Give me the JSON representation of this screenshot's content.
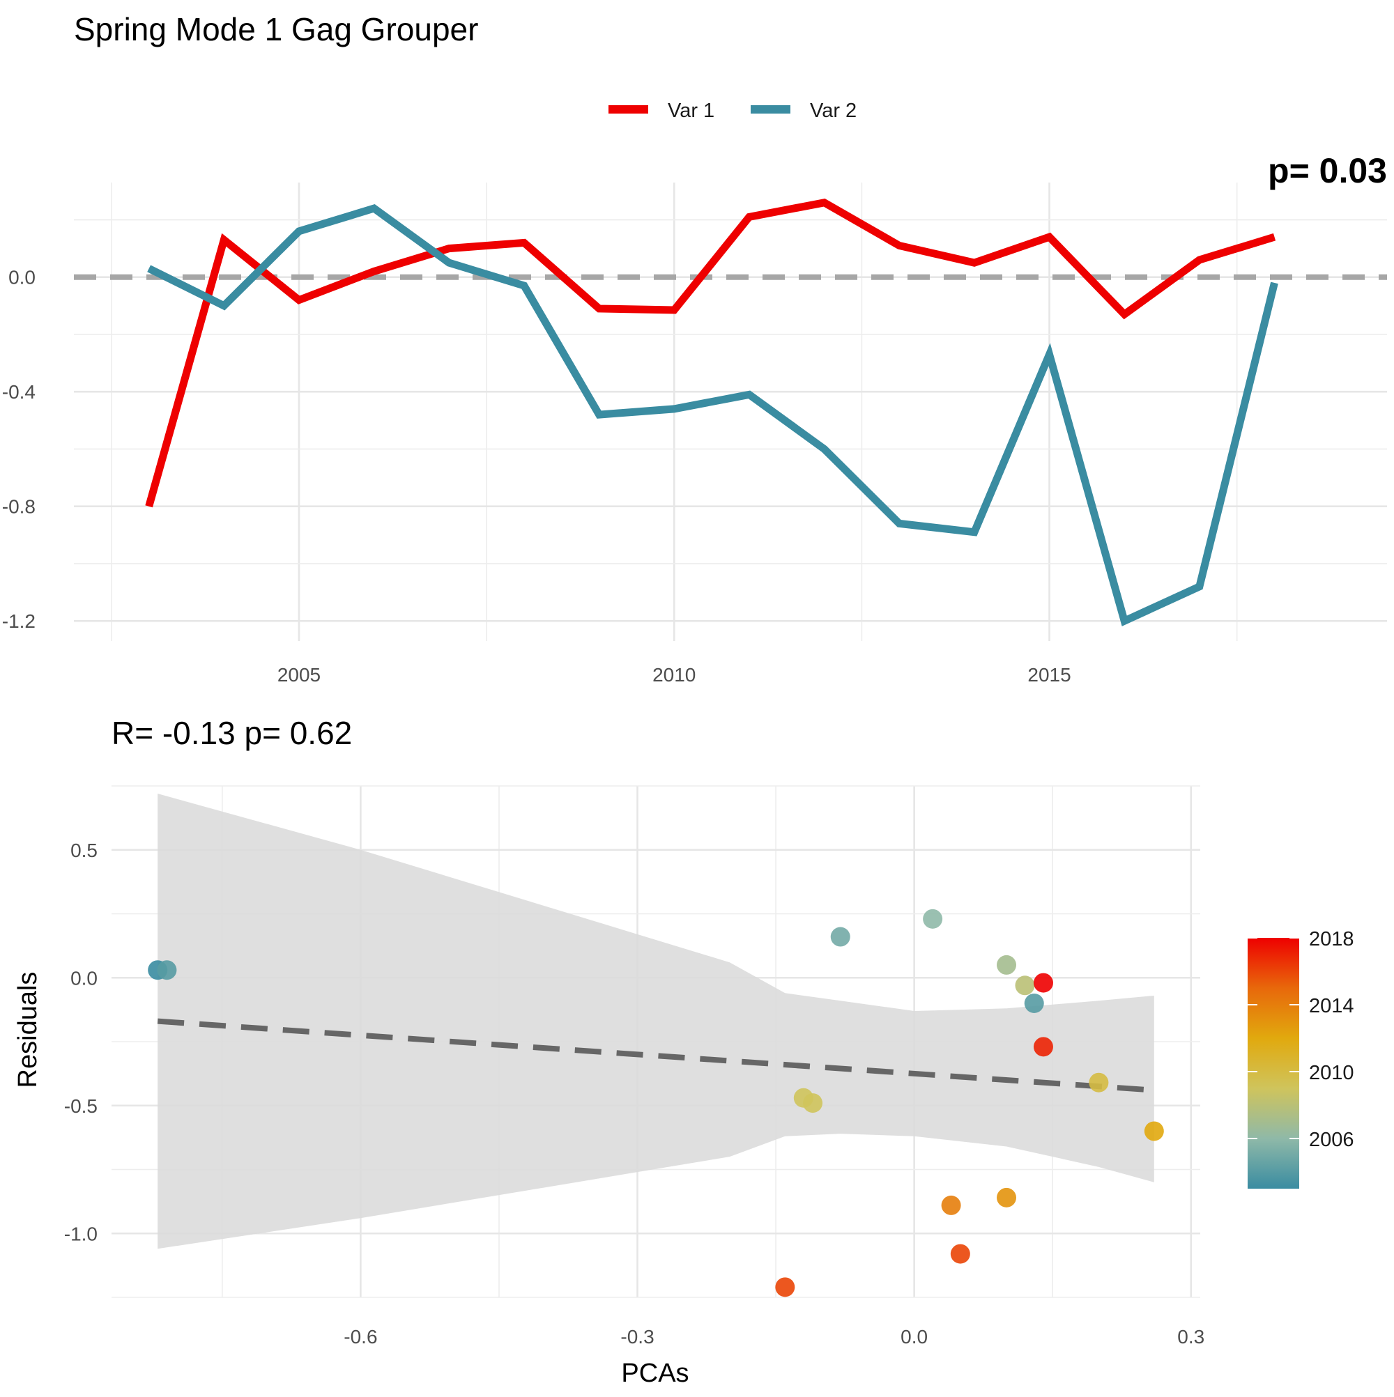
{
  "colors": {
    "var1": "#ee0000",
    "var2": "#3a8ca1",
    "zero_line": "#a6a6a6",
    "regression_line": "#666666",
    "ribbon": "#d9d9d9",
    "colorbar_gradient": [
      "#3a8ca1",
      "#8fb9a8",
      "#cfc45c",
      "#e1a90e",
      "#e8680b",
      "#ee0000"
    ]
  },
  "chart_data": [
    {
      "type": "line",
      "title": "Spring Mode 1 Gag Grouper",
      "xlabel": "",
      "ylabel": "",
      "partial_annotation": "p= 0.03",
      "legend": {
        "position": "top",
        "labels": [
          "Var 1",
          "Var 2"
        ]
      },
      "x": [
        2003,
        2004,
        2005,
        2006,
        2007,
        2008,
        2009,
        2010,
        2011,
        2012,
        2013,
        2014,
        2015,
        2016,
        2017,
        2018
      ],
      "series": [
        {
          "name": "Var 1",
          "values": [
            -0.8,
            0.13,
            -0.08,
            0.02,
            0.1,
            0.12,
            -0.11,
            -0.115,
            0.21,
            0.26,
            0.11,
            0.05,
            0.14,
            -0.13,
            0.06,
            0.14
          ]
        },
        {
          "name": "Var 2",
          "values": [
            0.03,
            -0.1,
            0.16,
            0.24,
            0.05,
            -0.03,
            -0.48,
            -0.46,
            -0.41,
            -0.6,
            -0.86,
            -0.89,
            -0.27,
            -1.2,
            -1.08,
            -0.02
          ]
        }
      ],
      "xlim": [
        2002,
        2019.5
      ],
      "ylim": [
        -1.27,
        0.33
      ],
      "xticks": [
        2005,
        2010,
        2015
      ],
      "yticks": [
        -1.2,
        -0.8,
        -0.4,
        0.0
      ],
      "ytick_labels": [
        "-1.2",
        "-0.8",
        "-0.4",
        "0.0"
      ],
      "reference_line": {
        "y": 0,
        "style": "dashed"
      },
      "grid": true
    },
    {
      "type": "scatter",
      "title": "R= -0.13  p= 0.62",
      "xlabel": "PCAs",
      "ylabel": "Residuals",
      "xlim": [
        -0.87,
        0.31
      ],
      "ylim": [
        -1.25,
        0.75
      ],
      "xticks": [
        -0.6,
        -0.3,
        0.0,
        0.3
      ],
      "xtick_labels": [
        "-0.6",
        "-0.3",
        "0.0",
        "0.3"
      ],
      "yticks": [
        -1.0,
        -0.5,
        0.0,
        0.5
      ],
      "ytick_labels": [
        "-1.0",
        "-0.5",
        "0.0",
        "0.5"
      ],
      "colorbar": {
        "title": "",
        "range": [
          2003,
          2018
        ],
        "ticks": [
          2006,
          2010,
          2014,
          2018
        ],
        "tick_labels": [
          "2006",
          "2010",
          "2014",
          "2018"
        ],
        "position": "right"
      },
      "points": [
        {
          "x": -0.82,
          "y": 0.03,
          "year": 2003
        },
        {
          "x": -0.81,
          "y": 0.03,
          "year": 2004
        },
        {
          "x": 0.13,
          "y": -0.1,
          "year": 2004
        },
        {
          "x": -0.08,
          "y": 0.16,
          "year": 2005
        },
        {
          "x": 0.02,
          "y": 0.23,
          "year": 2006
        },
        {
          "x": 0.1,
          "y": 0.05,
          "year": 2007
        },
        {
          "x": 0.12,
          "y": -0.03,
          "year": 2008
        },
        {
          "x": -0.11,
          "y": -0.49,
          "year": 2009
        },
        {
          "x": -0.12,
          "y": -0.47,
          "year": 2009
        },
        {
          "x": 0.2,
          "y": -0.41,
          "year": 2010
        },
        {
          "x": 0.26,
          "y": -0.6,
          "year": 2012
        },
        {
          "x": 0.1,
          "y": -0.86,
          "year": 2013
        },
        {
          "x": 0.04,
          "y": -0.89,
          "year": 2014
        },
        {
          "x": 0.05,
          "y": -1.08,
          "year": 2016
        },
        {
          "x": -0.14,
          "y": -1.21,
          "year": 2016
        },
        {
          "x": 0.14,
          "y": -0.27,
          "year": 2017
        },
        {
          "x": 0.14,
          "y": -0.02,
          "year": 2018
        }
      ],
      "fit_line": {
        "x": [
          -0.82,
          0.26
        ],
        "y": [
          -0.17,
          -0.44
        ],
        "style": "dashed"
      },
      "confidence_band": {
        "x": [
          -0.82,
          -0.6,
          -0.4,
          -0.2,
          -0.14,
          -0.08,
          0.0,
          0.1,
          0.2,
          0.26
        ],
        "upper": [
          0.72,
          0.5,
          0.28,
          0.06,
          -0.06,
          -0.09,
          -0.13,
          -0.12,
          -0.09,
          -0.07
        ],
        "lower": [
          -1.06,
          -0.94,
          -0.82,
          -0.7,
          -0.62,
          -0.61,
          -0.62,
          -0.66,
          -0.74,
          -0.8
        ]
      },
      "grid": true
    }
  ]
}
